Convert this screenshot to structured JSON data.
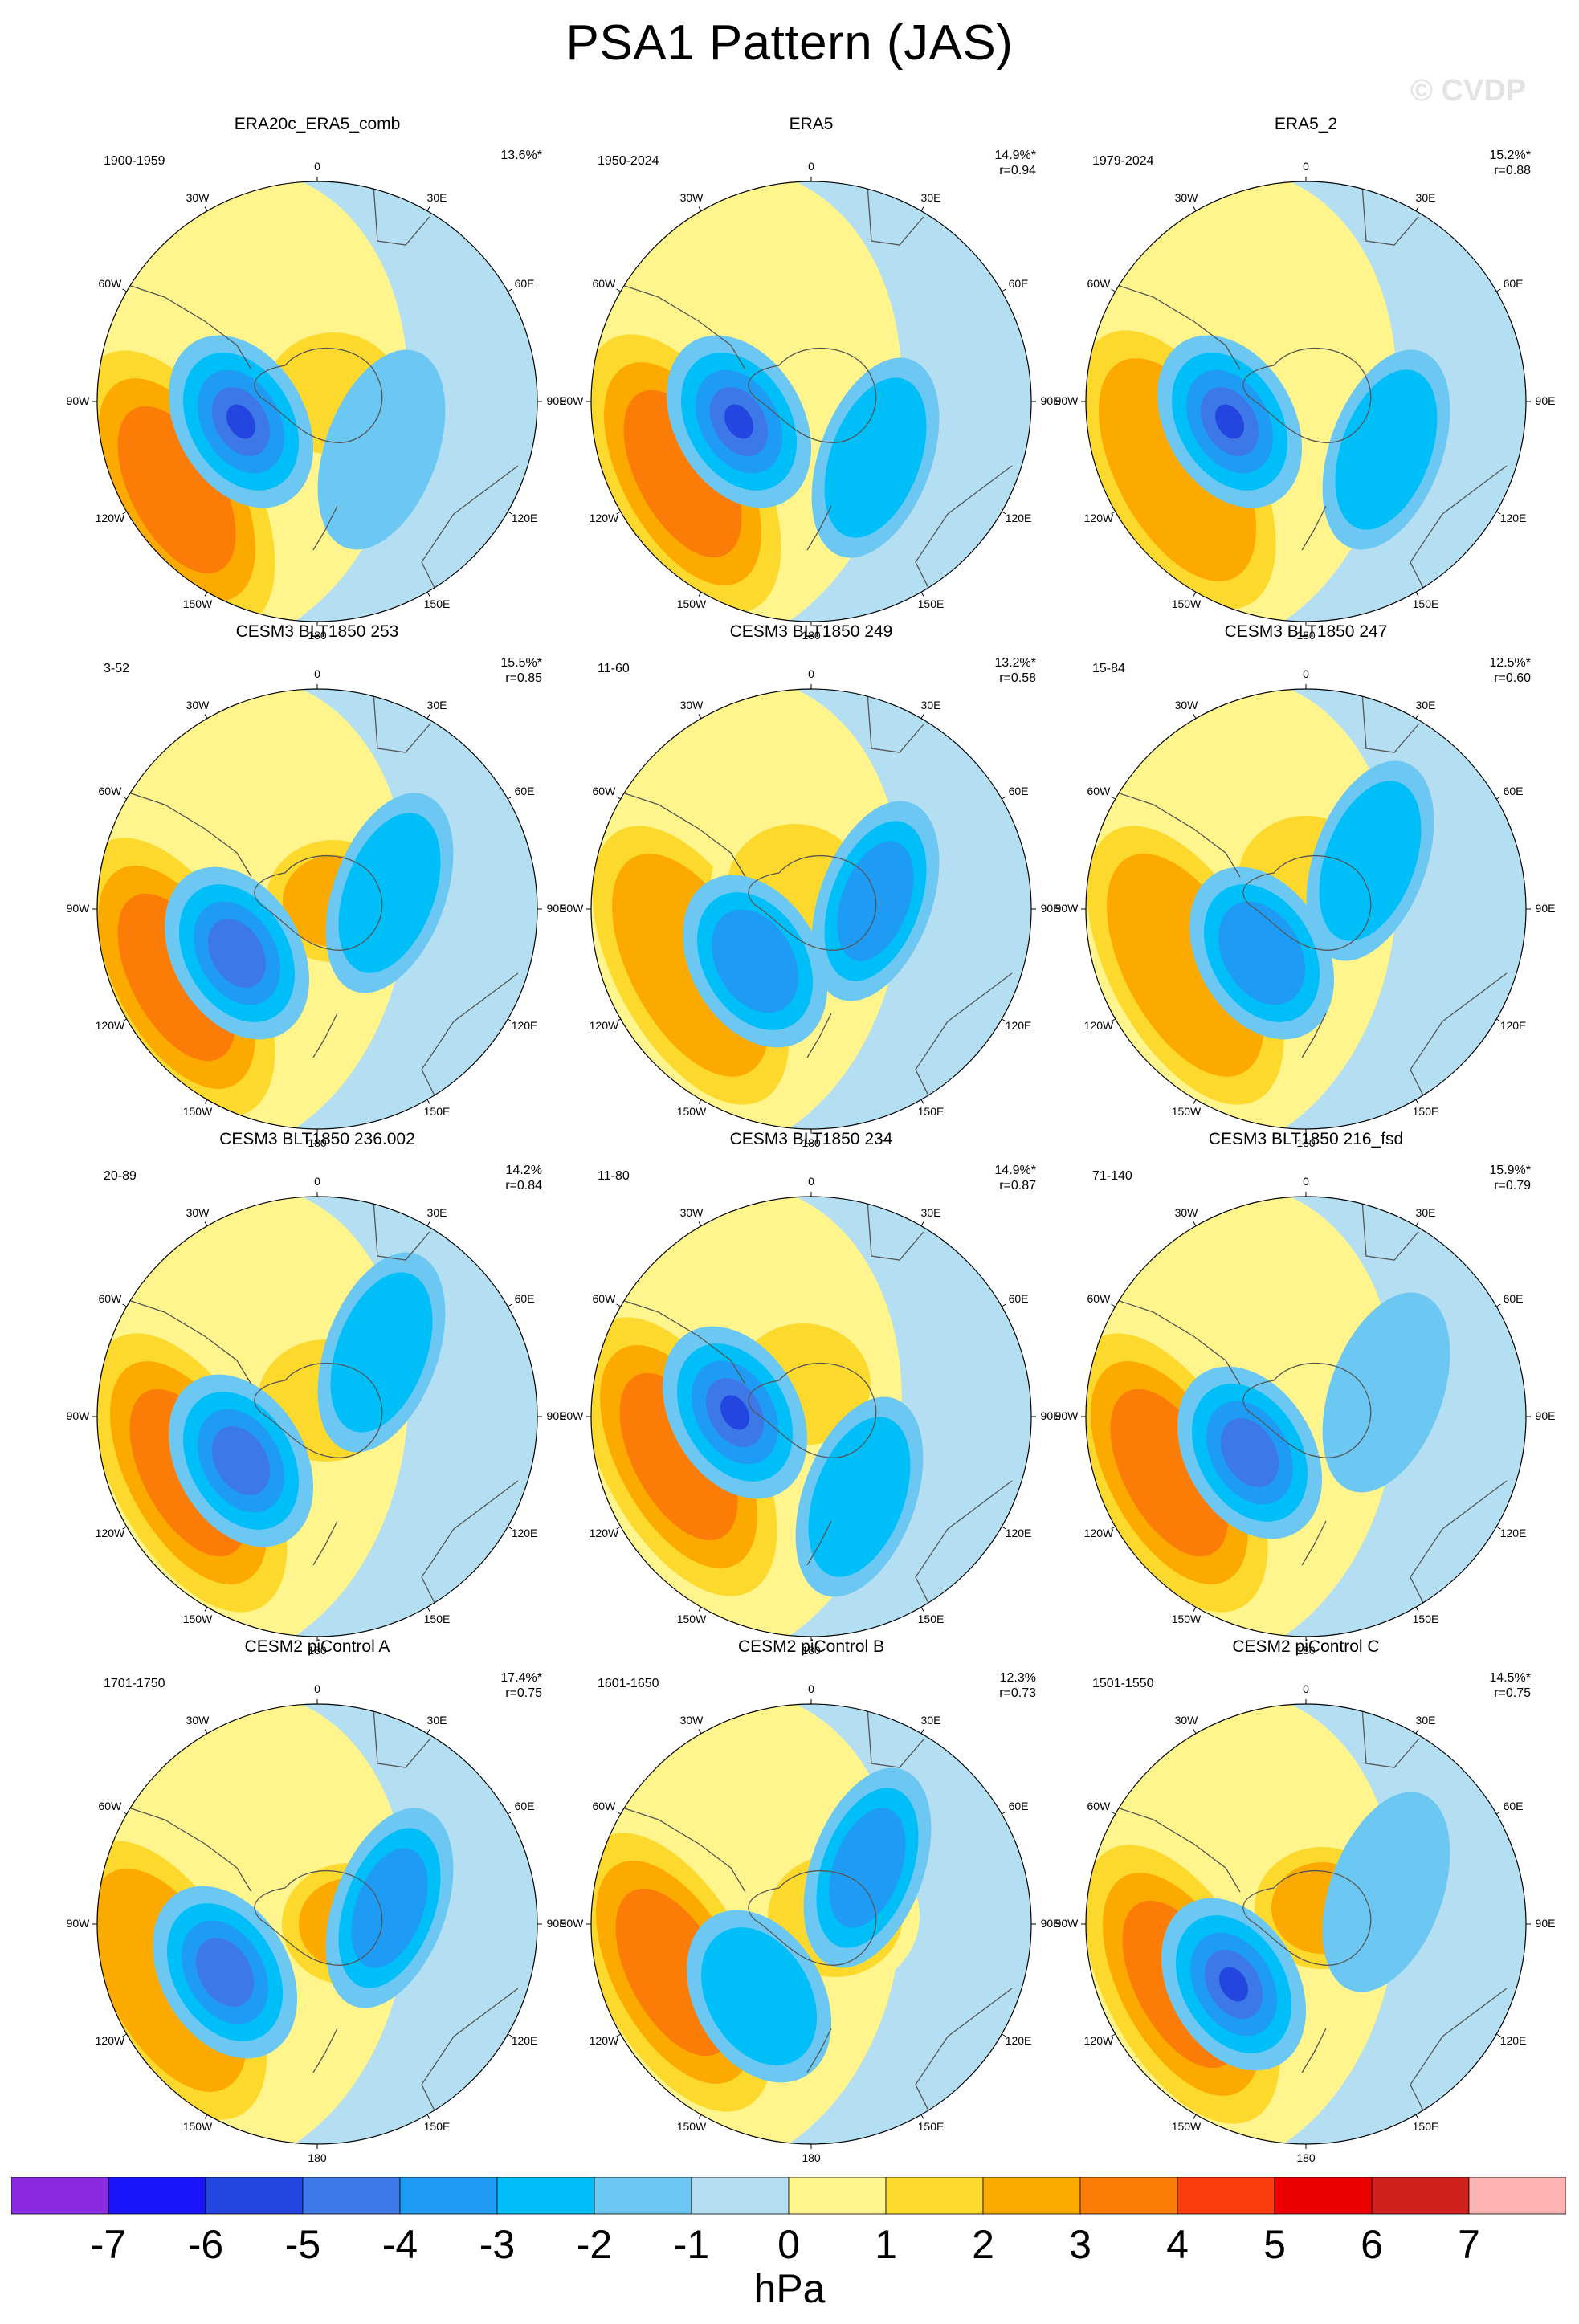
{
  "title": "PSA1 Pattern (JAS)",
  "watermark": "© CVDP",
  "colorbar": {
    "units": "hPa",
    "ticks": [
      "-7",
      "-6",
      "-5",
      "-4",
      "-3",
      "-2",
      "-1",
      "0",
      "1",
      "2",
      "3",
      "4",
      "5",
      "6",
      "7"
    ],
    "colors": [
      "#8a2be2",
      "#1a14fa",
      "#2346e0",
      "#3c78e8",
      "#1e9cf5",
      "#00bff8",
      "#6cc8f2",
      "#b4dff3",
      "#fff58c",
      "#fcd92c",
      "#fcaa00",
      "#fc7c08",
      "#fc3c0a",
      "#ee0000",
      "#d2201e",
      "#ffb4b4"
    ]
  },
  "map_labels": {
    "lon_0": "0",
    "lon_30e": "30E",
    "lon_60e": "60E",
    "lon_90e": "90E",
    "lon_120e": "120E",
    "lon_150e": "150E",
    "lon_180": "180",
    "lon_150w": "150W",
    "lon_120w": "120W",
    "lon_90w": "90W",
    "lon_60w": "60W",
    "lon_30w": "30W"
  },
  "panels": [
    {
      "title": "ERA20c_ERA5_comb",
      "years": "1900-1959",
      "pct": "13.6%*",
      "r": ""
    },
    {
      "title": "ERA5",
      "years": "1950-2024",
      "pct": "14.9%*",
      "r": "r=0.94"
    },
    {
      "title": "ERA5_2",
      "years": "1979-2024",
      "pct": "15.2%*",
      "r": "r=0.88"
    },
    {
      "title": "CESM3 BLT1850 253",
      "years": "3-52",
      "pct": "15.5%*",
      "r": "r=0.85"
    },
    {
      "title": "CESM3 BLT1850 249",
      "years": "11-60",
      "pct": "13.2%*",
      "r": "r=0.58"
    },
    {
      "title": "CESM3 BLT1850 247",
      "years": "15-84",
      "pct": "12.5%*",
      "r": "r=0.60"
    },
    {
      "title": "CESM3 BLT1850 236.002",
      "years": "20-89",
      "pct": "14.2%",
      "r": "r=0.84"
    },
    {
      "title": "CESM3 BLT1850 234",
      "years": "11-80",
      "pct": "14.9%*",
      "r": "r=0.87"
    },
    {
      "title": "CESM3 BLT1850 216_fsd",
      "years": "71-140",
      "pct": "15.9%*",
      "r": "r=0.79"
    },
    {
      "title": "CESM2 piControl A",
      "years": "1701-1750",
      "pct": "17.4%*",
      "r": "r=0.75"
    },
    {
      "title": "CESM2 piControl B",
      "years": "1601-1650",
      "pct": "12.3%",
      "r": "r=0.73"
    },
    {
      "title": "CESM2 piControl C",
      "years": "1501-1550",
      "pct": "14.5%*",
      "r": "r=0.75"
    }
  ]
}
